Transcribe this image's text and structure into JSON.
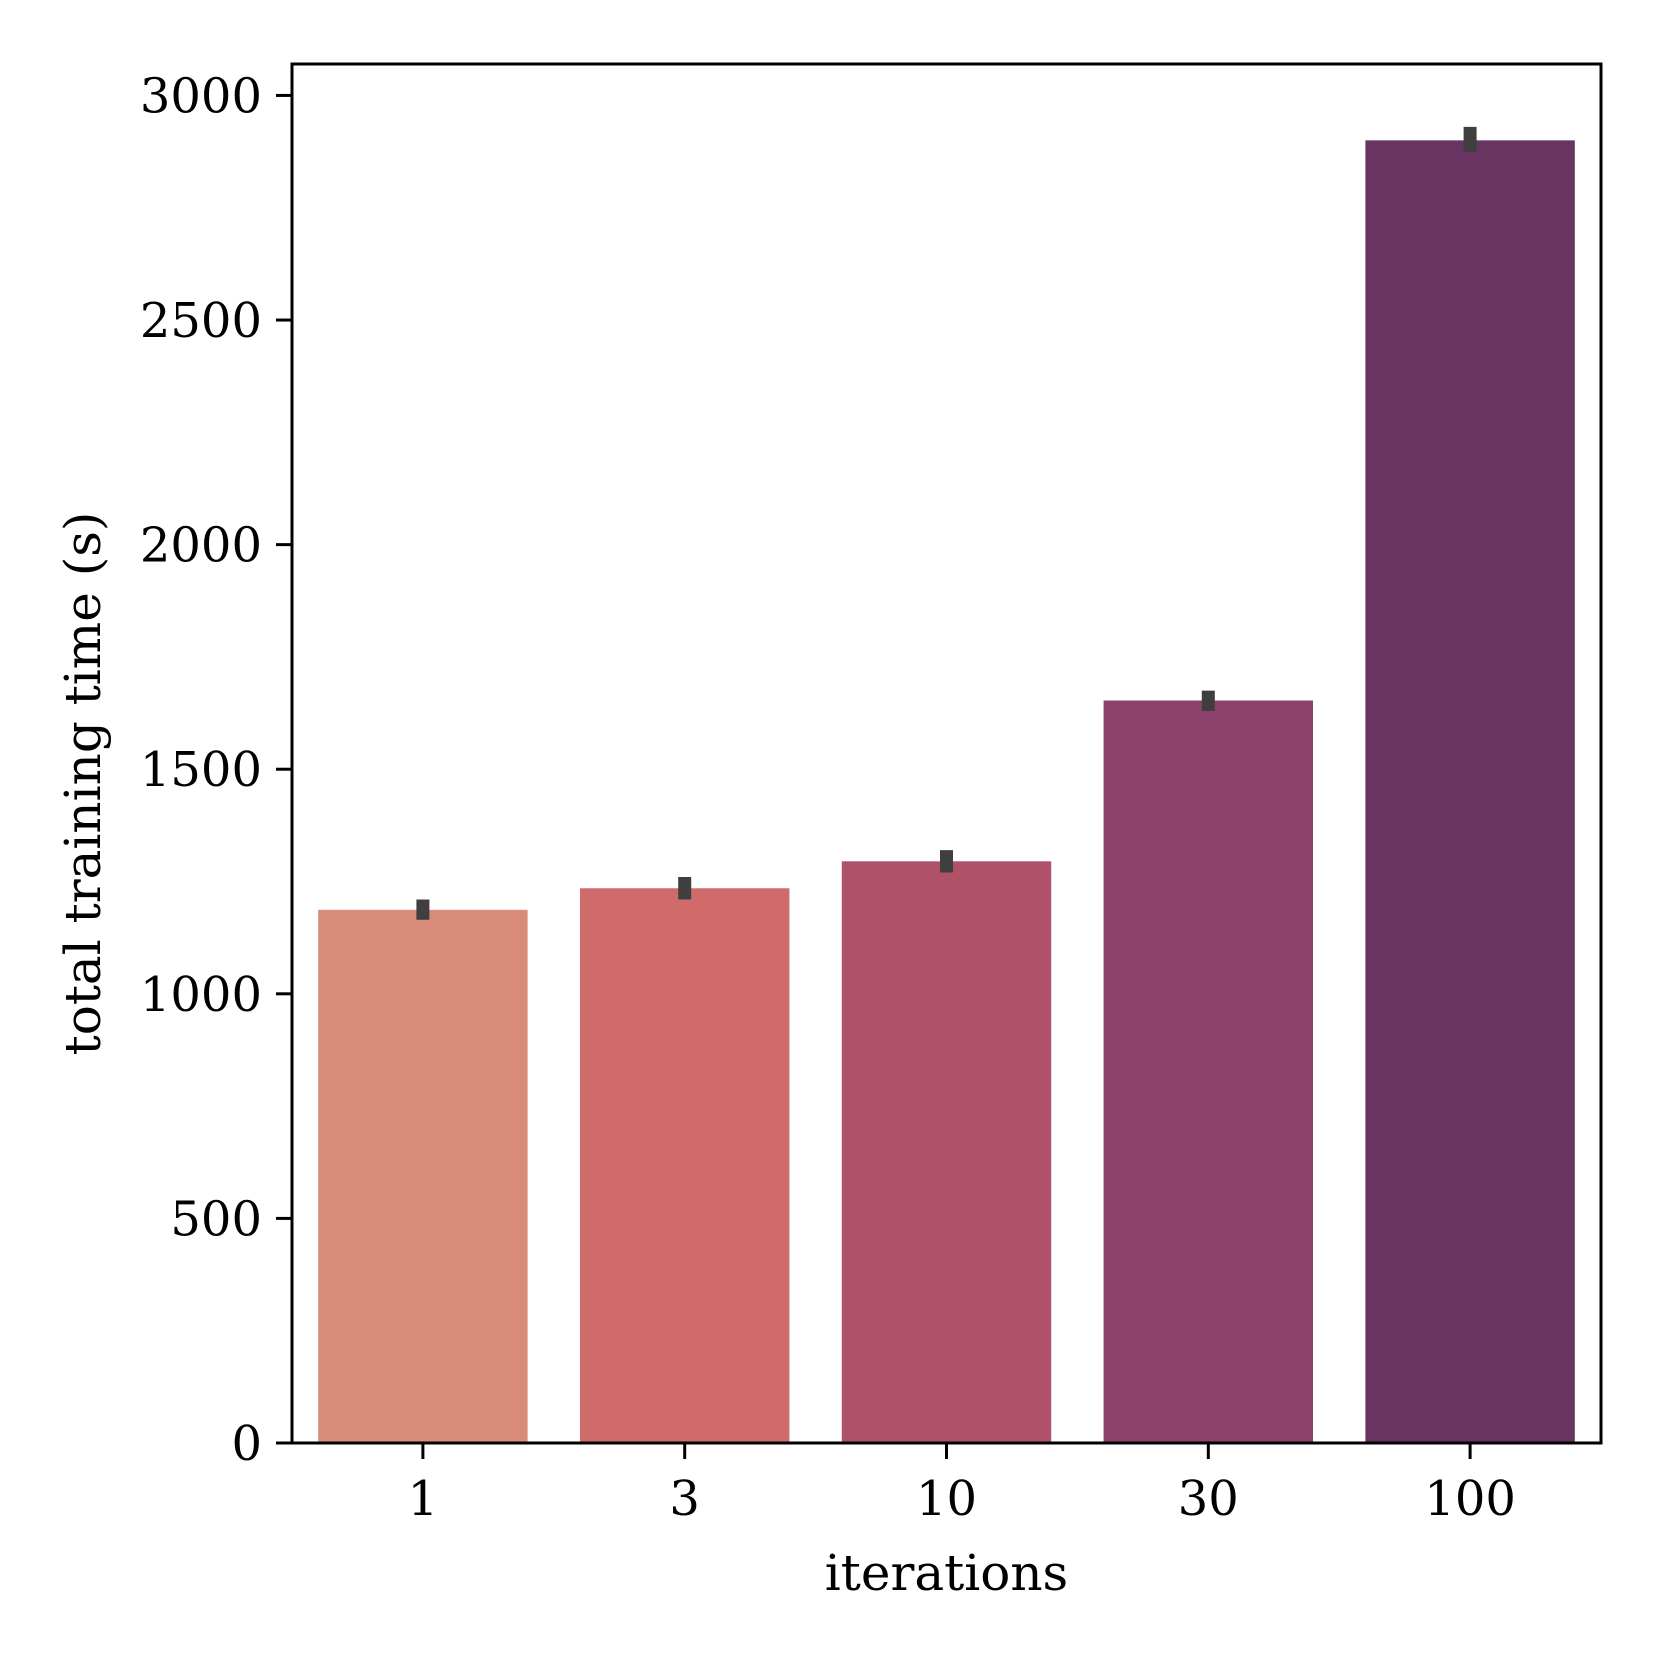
{
  "chart_data": {
    "type": "bar",
    "title": "",
    "xlabel": "iterations",
    "ylabel": "total training time (s)",
    "categories": [
      "1",
      "3",
      "10",
      "30",
      "100"
    ],
    "values": [
      1187,
      1235,
      1295,
      1653,
      2900
    ],
    "errors": [
      [
        1165,
        1210
      ],
      [
        1210,
        1260
      ],
      [
        1270,
        1320
      ],
      [
        1630,
        1675
      ],
      [
        2875,
        2930
      ]
    ],
    "colors": [
      "#d98d78",
      "#cf6c6b",
      "#b0516a",
      "#8d426b",
      "#683462"
    ],
    "error_color": "#3f3f3f",
    "ylim": [
      0,
      3070
    ],
    "yticks": [
      0,
      500,
      1000,
      1500,
      2000,
      2500,
      3000
    ],
    "grid": false,
    "legend": "none"
  }
}
